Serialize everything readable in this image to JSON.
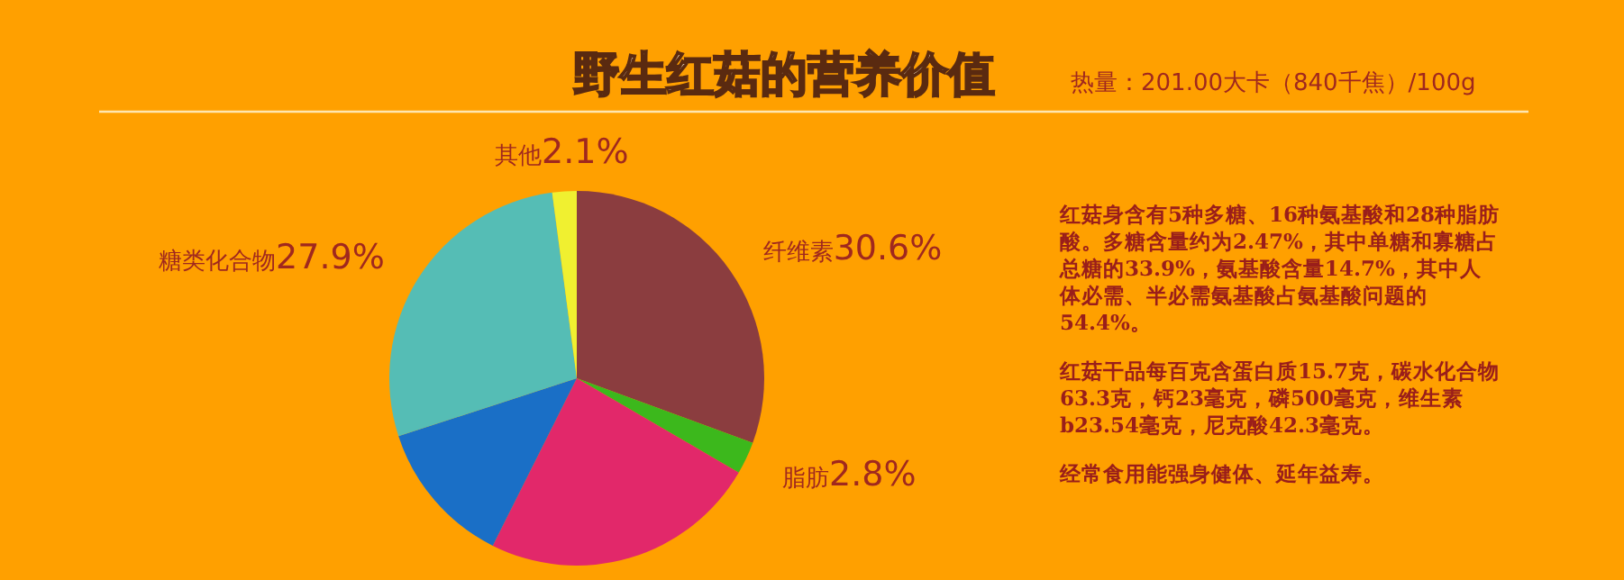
{
  "chart_data": {
    "type": "pie",
    "title": "野生红菇的营养价值",
    "subtitle": "热量：201.00大卡（840千焦）/100g",
    "categories": [
      "纤维素",
      "脂肪",
      null,
      null,
      "糖类化合物",
      "其他"
    ],
    "values": [
      30.6,
      2.8,
      24.0,
      12.6,
      27.9,
      2.1
    ],
    "value_labels": [
      "30.6%",
      "2.8%",
      null,
      null,
      "27.9%",
      "2.1%"
    ],
    "colors": [
      "#8b3d3f",
      "#3cb81c",
      "#e2286a",
      "#1a6fc6",
      "#55bdb5",
      "#f0f030"
    ],
    "annotations": [
      "红菇身含有5种多糖、16种氨基酸和28种脂肪酸。多糖含量约为2.47%，其中单糖和寡糖占总糖的33.9%，氨基酸含量14.7%，其中人体必需、半必需氨基酸占氨基酸问题的54.4%。",
      "红菇干品每百克含蛋白质15.7克，碳水化合物63.3克，钙23毫克，磷500毫克，维生素b23.54毫克，尼克酸42.3毫克。",
      "经常食用能强身健体、延年益寿。"
    ]
  }
}
